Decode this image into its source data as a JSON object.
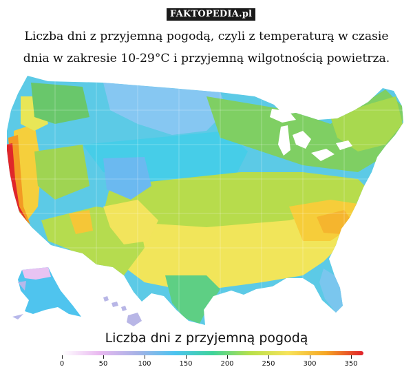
{
  "watermark": "FAKTOPEDIA.pl",
  "title": {
    "line1": "Liczba dni z przyjemną pogodą, czyli z temperaturą w czasie",
    "line2": "dnia w zakresie 10-29°C i przyjemną wilgotnością powietrza."
  },
  "legend": {
    "title": "Liczba dni z przyjemną pogodą",
    "min": 0,
    "max": 365,
    "ticks": [
      "0",
      "50",
      "100",
      "150",
      "200",
      "250",
      "300",
      "350"
    ],
    "gradient_stops": [
      "#ffffff",
      "#e9b8f0",
      "#a6b2e6",
      "#4bc3f0",
      "#3ed39a",
      "#b8e04a",
      "#f7e35a",
      "#f6a623",
      "#e0202a"
    ]
  },
  "colors": {
    "pink": "#eac0f0",
    "lavender": "#b7b8ea",
    "sky": "#79c6f1",
    "cyan": "#4fcde9",
    "teal": "#41d3b0",
    "green": "#63c96a",
    "yellow_green": "#b8de4e",
    "yellow": "#f5e65a",
    "gold": "#f6c536",
    "orange": "#f39a23",
    "red": "#e32a22",
    "dark_red": "#c8102e"
  }
}
